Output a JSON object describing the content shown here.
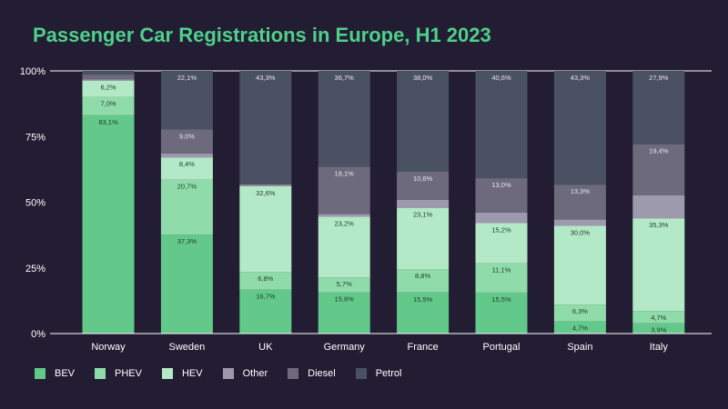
{
  "chart_data": {
    "type": "bar",
    "stacked": true,
    "title": "Passenger Car Registrations in Europe, H1 2023",
    "categories": [
      "Norway",
      "Sweden",
      "UK",
      "Germany",
      "France",
      "Portugal",
      "Spain",
      "Italy"
    ],
    "y_ticks": [
      "0%",
      "25%",
      "50%",
      "75%",
      "100%"
    ],
    "ylim": [
      0,
      100
    ],
    "grid": false,
    "legend_position": "bottom-left",
    "series": [
      {
        "name": "BEV",
        "color": "#63c98b",
        "values": [
          83.1,
          37.3,
          16.7,
          15.8,
          15.5,
          15.5,
          4.7,
          3.9
        ],
        "labels": [
          "83,1%",
          "37,3%",
          "16,7%",
          "15,8%",
          "15,5%",
          "15,5%",
          "4,7%",
          "3,9%"
        ]
      },
      {
        "name": "PHEV",
        "color": "#8fdcaa",
        "values": [
          7.0,
          20.7,
          6.8,
          5.7,
          8.8,
          11.1,
          6.3,
          4.7
        ],
        "labels": [
          "7,0%",
          "20,7%",
          "6,8%",
          "5,7%",
          "8,8%",
          "11,1%",
          "6,3%",
          "4,7%"
        ]
      },
      {
        "name": "HEV",
        "color": "#b4e9c7",
        "values": [
          6.2,
          8.4,
          32.6,
          23.2,
          23.1,
          15.2,
          30.0,
          35.3
        ],
        "labels": [
          "6,2%",
          "8,4%",
          "32,6%",
          "23,2%",
          "23,1%",
          "15,2%",
          "30,0%",
          "35,3%"
        ]
      },
      {
        "name": "Other",
        "color": "#9e9aae",
        "values": [
          0.5,
          1.5,
          0.6,
          1.0,
          3.0,
          4.0,
          2.4,
          8.8
        ],
        "labels": [
          "",
          "",
          "",
          "",
          "",
          "",
          "",
          ""
        ]
      },
      {
        "name": "Diesel",
        "color": "#6d6a7e",
        "values": [
          1.8,
          9.0,
          0.0,
          18.1,
          10.6,
          13.0,
          13.3,
          19.4
        ],
        "labels": [
          "",
          "9,0%",
          "",
          "18,1%",
          "10,6%",
          "13,0%",
          "13,3%",
          "19,4%"
        ]
      },
      {
        "name": "Petrol",
        "color": "#4a5163",
        "values": [
          1.4,
          22.1,
          43.3,
          36.7,
          38.0,
          40.6,
          43.3,
          27.9
        ],
        "labels": [
          "",
          "22,1%",
          "43,3%",
          "36,7%",
          "38,0%",
          "40,6%",
          "43,3%",
          "27,9%"
        ]
      }
    ]
  }
}
